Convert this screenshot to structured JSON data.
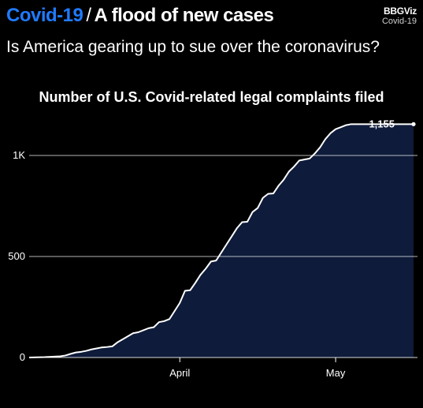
{
  "header": {
    "topic": "Covid-19",
    "separator": "/",
    "headline": "A flood of new cases",
    "brand_name": "BBGViz",
    "brand_section": "Covid-19"
  },
  "question": "Is America gearing up to sue over the coronavirus?",
  "colors": {
    "background": "#000000",
    "topic_accent": "#1f7bff",
    "area_fill": "#0e1b3a",
    "line": "#ffffff",
    "grid": "#ffffff"
  },
  "chart_data": {
    "type": "area",
    "title": "Number of U.S. Covid-related legal complaints filed",
    "xlabel": "",
    "ylabel": "",
    "x_start": "2020-03-03",
    "x_end": "2020-05-16",
    "ylim": [
      0,
      1155
    ],
    "yticks": [
      0,
      500,
      1000
    ],
    "ytick_labels": [
      "0",
      "500",
      "1K"
    ],
    "xticks": [
      "2020-04-01",
      "2020-05-01"
    ],
    "xtick_labels": [
      "April",
      "May"
    ],
    "grid": true,
    "series": [
      {
        "x": [
          "2020-03-03",
          "2020-03-06",
          "2020-03-09",
          "2020-03-10",
          "2020-03-11",
          "2020-03-12",
          "2020-03-13",
          "2020-03-14",
          "2020-03-15",
          "2020-03-16",
          "2020-03-17",
          "2020-03-18",
          "2020-03-19",
          "2020-03-20",
          "2020-03-21",
          "2020-03-22",
          "2020-03-23",
          "2020-03-24",
          "2020-03-25",
          "2020-03-26",
          "2020-03-27",
          "2020-03-28",
          "2020-03-29",
          "2020-03-30",
          "2020-03-31",
          "2020-04-01",
          "2020-04-02",
          "2020-04-03",
          "2020-04-04",
          "2020-04-05",
          "2020-04-06",
          "2020-04-07",
          "2020-04-08",
          "2020-04-09",
          "2020-04-10",
          "2020-04-11",
          "2020-04-12",
          "2020-04-13",
          "2020-04-14",
          "2020-04-15",
          "2020-04-16",
          "2020-04-17",
          "2020-04-18",
          "2020-04-19",
          "2020-04-20",
          "2020-04-21",
          "2020-04-22",
          "2020-04-23",
          "2020-04-24",
          "2020-04-25",
          "2020-04-26",
          "2020-04-27",
          "2020-04-28",
          "2020-04-29",
          "2020-04-30",
          "2020-05-01",
          "2020-05-02",
          "2020-05-03",
          "2020-05-04",
          "2020-05-05",
          "2020-05-06",
          "2020-05-07",
          "2020-05-08",
          "2020-05-09",
          "2020-05-10",
          "2020-05-11",
          "2020-05-12",
          "2020-05-13",
          "2020-05-14",
          "2020-05-15",
          "2020-05-16"
        ],
        "values": [
          0,
          2,
          6,
          10,
          18,
          25,
          28,
          33,
          40,
          45,
          50,
          52,
          55,
          75,
          90,
          105,
          120,
          125,
          135,
          145,
          150,
          175,
          180,
          190,
          230,
          270,
          330,
          333,
          370,
          410,
          440,
          475,
          480,
          520,
          560,
          600,
          640,
          670,
          672,
          720,
          740,
          790,
          810,
          812,
          850,
          880,
          920,
          945,
          975,
          980,
          985,
          1010,
          1040,
          1080,
          1110,
          1130,
          1140,
          1150,
          1155,
          1155,
          1155,
          1155,
          1155,
          1155,
          1155,
          1155,
          1155,
          1155,
          1155,
          1155,
          1155
        ]
      }
    ],
    "annotations": [
      {
        "label": "1,155",
        "x": "2020-05-16",
        "value": 1155
      }
    ]
  }
}
